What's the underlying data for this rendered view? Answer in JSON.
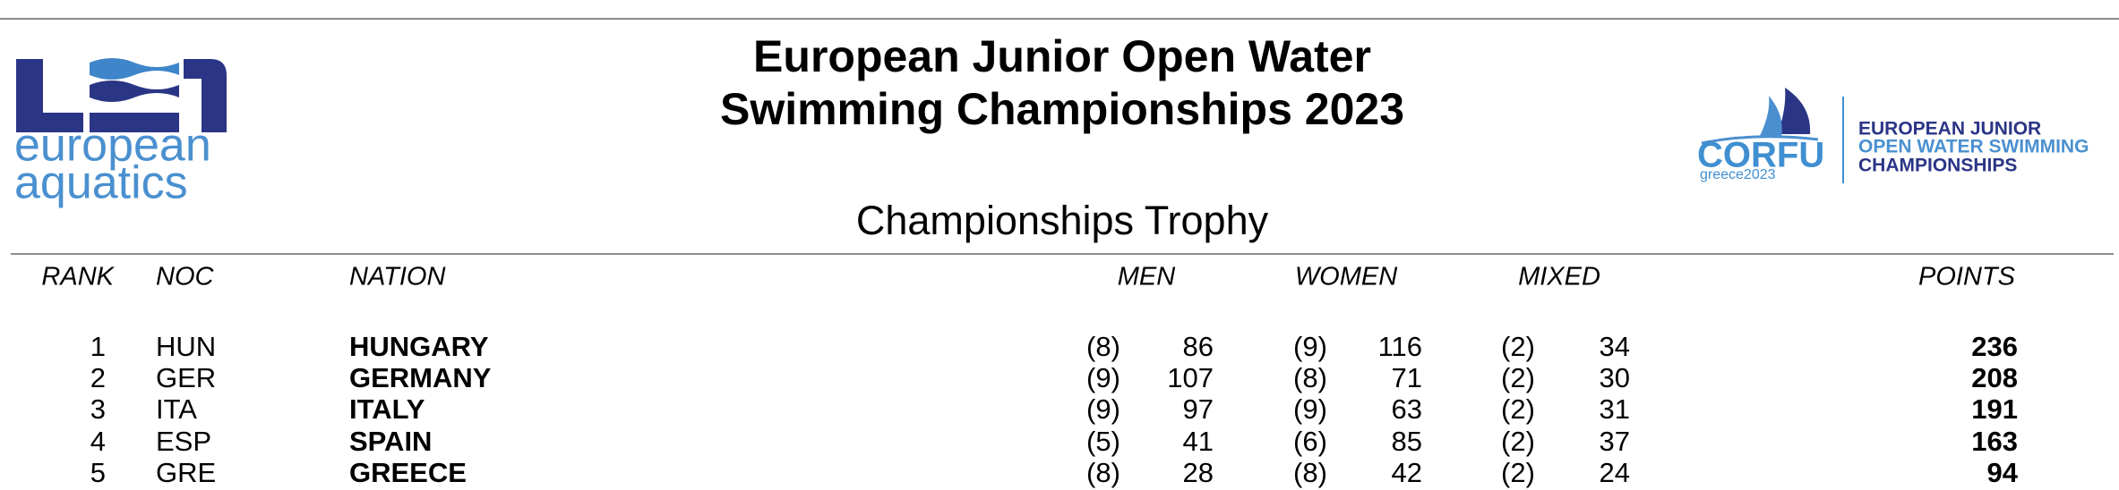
{
  "header": {
    "title_lines": [
      "European Junior Open Water",
      "Swimming Championships 2023"
    ],
    "subtitle": "Championships Trophy"
  },
  "left_logo": {
    "lines": [
      "european",
      "aquatics"
    ]
  },
  "right_logo": {
    "mark": "CORFU",
    "mark_sub": "greece2023",
    "lines": [
      "EUROPEAN JUNIOR",
      "OPEN WATER SWIMMING",
      "CHAMPIONSHIPS"
    ]
  },
  "table": {
    "columns": [
      "RANK",
      "NOC",
      "NATION",
      "MEN",
      "WOMEN",
      "MIXED",
      "POINTS"
    ],
    "rows": [
      [
        1,
        "HUN",
        "HUNGARY",
        "(8)",
        86,
        "(9)",
        116,
        "(2)",
        34,
        236
      ],
      [
        2,
        "GER",
        "GERMANY",
        "(9)",
        107,
        "(8)",
        71,
        "(2)",
        30,
        208
      ],
      [
        3,
        "ITA",
        "ITALY",
        "(9)",
        97,
        "(9)",
        63,
        "(2)",
        31,
        191
      ],
      [
        4,
        "ESP",
        "SPAIN",
        "(5)",
        41,
        "(6)",
        85,
        "(2)",
        37,
        163
      ],
      [
        5,
        "GRE",
        "GREECE",
        "(8)",
        28,
        "(8)",
        42,
        "(2)",
        24,
        94
      ]
    ]
  }
}
